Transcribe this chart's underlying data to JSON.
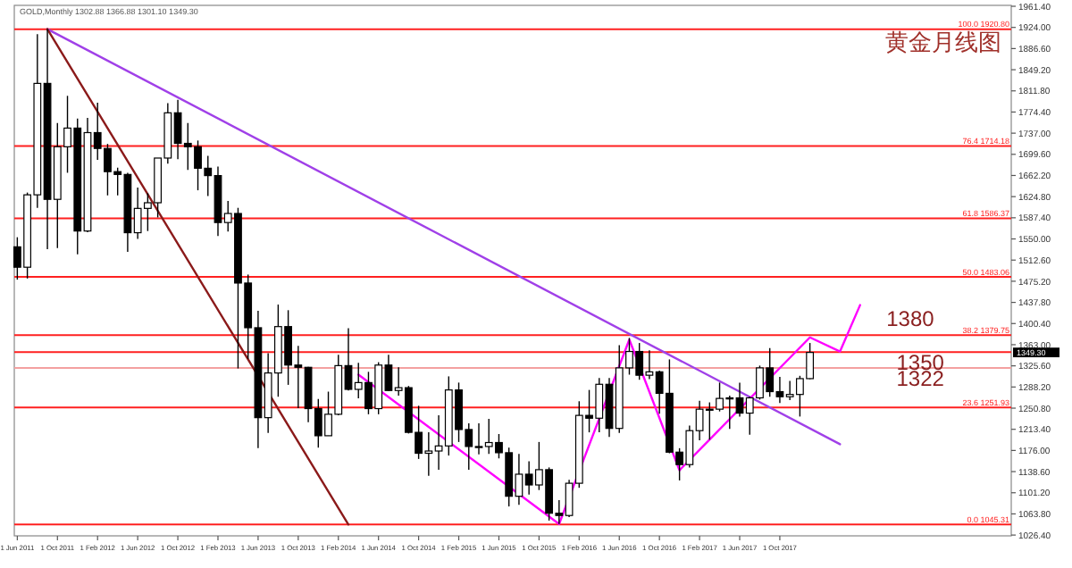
{
  "chart_data": {
    "type": "candlestick",
    "title": "黄金月线图",
    "subtitle": "GOLD,Monthly 1302.88 1366.88 1301.10 1349.30",
    "x": [
      "2011-06",
      "2011-07",
      "2011-08",
      "2011-09",
      "2011-10",
      "2011-11",
      "2011-12",
      "2012-01",
      "2012-02",
      "2012-03",
      "2012-04",
      "2012-05",
      "2012-06",
      "2012-07",
      "2012-08",
      "2012-09",
      "2012-10",
      "2012-11",
      "2012-12",
      "2013-01",
      "2013-02",
      "2013-03",
      "2013-04",
      "2013-05",
      "2013-06",
      "2013-07",
      "2013-08",
      "2013-09",
      "2013-10",
      "2013-11",
      "2013-12",
      "2014-01",
      "2014-02",
      "2014-03",
      "2014-04",
      "2014-05",
      "2014-06",
      "2014-07",
      "2014-08",
      "2014-09",
      "2014-10",
      "2014-11",
      "2014-12",
      "2015-01",
      "2015-02",
      "2015-03",
      "2015-04",
      "2015-05",
      "2015-06",
      "2015-07",
      "2015-08",
      "2015-09",
      "2015-10",
      "2015-11",
      "2015-12",
      "2016-01",
      "2016-02",
      "2016-03",
      "2016-04",
      "2016-05",
      "2016-06",
      "2016-07",
      "2016-08",
      "2016-09",
      "2016-10",
      "2016-11",
      "2016-12",
      "2017-01",
      "2017-02",
      "2017-03",
      "2017-04",
      "2017-05",
      "2017-06",
      "2017-07",
      "2017-08",
      "2017-09",
      "2017-10",
      "2017-11",
      "2017-12",
      "2018-01"
    ],
    "ohlc": [
      [
        1536,
        1553,
        1478,
        1500
      ],
      [
        1500,
        1632,
        1480,
        1628
      ],
      [
        1628,
        1912,
        1605,
        1825
      ],
      [
        1825,
        1921,
        1532,
        1620
      ],
      [
        1620,
        1755,
        1534,
        1713
      ],
      [
        1713,
        1803,
        1667,
        1746
      ],
      [
        1746,
        1763,
        1523,
        1564
      ],
      [
        1564,
        1764,
        1562,
        1738
      ],
      [
        1738,
        1791,
        1690,
        1710
      ],
      [
        1710,
        1718,
        1627,
        1669
      ],
      [
        1669,
        1676,
        1627,
        1664
      ],
      [
        1664,
        1667,
        1527,
        1561
      ],
      [
        1561,
        1641,
        1550,
        1604
      ],
      [
        1604,
        1631,
        1564,
        1614
      ],
      [
        1614,
        1693,
        1588,
        1693
      ],
      [
        1693,
        1790,
        1683,
        1773
      ],
      [
        1773,
        1796,
        1691,
        1719
      ],
      [
        1719,
        1755,
        1672,
        1713
      ],
      [
        1713,
        1724,
        1636,
        1675
      ],
      [
        1675,
        1697,
        1626,
        1662
      ],
      [
        1662,
        1678,
        1555,
        1579
      ],
      [
        1579,
        1617,
        1563,
        1595
      ],
      [
        1595,
        1605,
        1321,
        1472
      ],
      [
        1472,
        1487,
        1338,
        1393
      ],
      [
        1393,
        1423,
        1180,
        1234
      ],
      [
        1234,
        1348,
        1207,
        1313
      ],
      [
        1313,
        1434,
        1271,
        1395
      ],
      [
        1395,
        1424,
        1292,
        1327
      ],
      [
        1327,
        1361,
        1251,
        1323
      ],
      [
        1323,
        1324,
        1226,
        1250
      ],
      [
        1250,
        1267,
        1181,
        1202
      ],
      [
        1202,
        1280,
        1202,
        1240
      ],
      [
        1240,
        1345,
        1238,
        1326
      ],
      [
        1326,
        1392,
        1282,
        1284
      ],
      [
        1284,
        1331,
        1268,
        1296
      ],
      [
        1296,
        1315,
        1240,
        1250
      ],
      [
        1250,
        1332,
        1240,
        1327
      ],
      [
        1327,
        1345,
        1281,
        1282
      ],
      [
        1282,
        1323,
        1273,
        1287
      ],
      [
        1287,
        1290,
        1206,
        1208
      ],
      [
        1208,
        1255,
        1161,
        1171
      ],
      [
        1171,
        1208,
        1131,
        1175
      ],
      [
        1175,
        1238,
        1142,
        1184
      ],
      [
        1184,
        1307,
        1167,
        1283
      ],
      [
        1283,
        1296,
        1191,
        1213
      ],
      [
        1213,
        1224,
        1142,
        1183
      ],
      [
        1183,
        1224,
        1169,
        1183
      ],
      [
        1183,
        1232,
        1170,
        1190
      ],
      [
        1190,
        1205,
        1162,
        1172
      ],
      [
        1172,
        1181,
        1077,
        1095
      ],
      [
        1095,
        1170,
        1080,
        1134
      ],
      [
        1134,
        1157,
        1098,
        1115
      ],
      [
        1115,
        1191,
        1106,
        1142
      ],
      [
        1142,
        1146,
        1052,
        1065
      ],
      [
        1065,
        1088,
        1046,
        1061
      ],
      [
        1061,
        1124,
        1058,
        1118
      ],
      [
        1118,
        1263,
        1110,
        1238
      ],
      [
        1238,
        1283,
        1208,
        1233
      ],
      [
        1233,
        1304,
        1208,
        1293
      ],
      [
        1293,
        1304,
        1200,
        1215
      ],
      [
        1215,
        1362,
        1207,
        1322
      ],
      [
        1322,
        1375,
        1310,
        1351
      ],
      [
        1351,
        1366,
        1301,
        1309
      ],
      [
        1309,
        1353,
        1302,
        1315
      ],
      [
        1315,
        1317,
        1241,
        1277
      ],
      [
        1277,
        1337,
        1171,
        1173
      ],
      [
        1173,
        1180,
        1123,
        1151
      ],
      [
        1151,
        1220,
        1146,
        1211
      ],
      [
        1211,
        1264,
        1194,
        1249
      ],
      [
        1249,
        1261,
        1195,
        1249
      ],
      [
        1249,
        1296,
        1245,
        1268
      ],
      [
        1268,
        1273,
        1214,
        1269
      ],
      [
        1269,
        1296,
        1236,
        1242
      ],
      [
        1242,
        1271,
        1204,
        1269
      ],
      [
        1269,
        1326,
        1266,
        1322
      ],
      [
        1322,
        1357,
        1271,
        1280
      ],
      [
        1280,
        1306,
        1260,
        1271
      ],
      [
        1271,
        1299,
        1265,
        1275
      ],
      [
        1275,
        1308,
        1236,
        1303
      ],
      [
        1303,
        1366,
        1302,
        1349.3
      ]
    ],
    "series": [
      {
        "type": "line",
        "color": "#a040e8",
        "x": [
          "2011-09",
          "2018-04"
        ],
        "values": [
          1921,
          1187
        ]
      },
      {
        "type": "line",
        "color": "#8b1a1a",
        "x": [
          "2011-09",
          "2014-03"
        ],
        "values": [
          1921,
          1045
        ]
      },
      {
        "type": "line",
        "color": "#ff00ff",
        "x": [
          "2014-04",
          "2015-12",
          "2016-07",
          "2016-12",
          "2018-01",
          "2018-04",
          "2018-06"
        ],
        "values": [
          1310,
          1046,
          1372,
          1141,
          1376,
          1351,
          1433
        ]
      }
    ],
    "xlim": [
      "2011-05-22",
      "2019-09-03"
    ],
    "xticks": [
      {
        "value": "2011-06",
        "label": "1 Jun 2011"
      },
      {
        "value": "2011-10",
        "label": "1 Oct 2011"
      },
      {
        "value": "2012-02",
        "label": "1 Feb 2012"
      },
      {
        "value": "2012-06",
        "label": "1 Jun 2012"
      },
      {
        "value": "2012-10",
        "label": "1 Oct 2012"
      },
      {
        "value": "2013-02",
        "label": "1 Feb 2013"
      },
      {
        "value": "2013-06",
        "label": "1 Jun 2013"
      },
      {
        "value": "2013-10",
        "label": "1 Oct 2013"
      },
      {
        "value": "2014-02",
        "label": "1 Feb 2014"
      },
      {
        "value": "2014-06",
        "label": "1 Jun 2014"
      },
      {
        "value": "2014-10",
        "label": "1 Oct 2014"
      },
      {
        "value": "2015-02",
        "label": "1 Feb 2015"
      },
      {
        "value": "2015-06",
        "label": "1 Jun 2015"
      },
      {
        "value": "2015-10",
        "label": "1 Oct 2015"
      },
      {
        "value": "2016-02",
        "label": "1 Feb 2016"
      },
      {
        "value": "2016-06",
        "label": "1 Jun 2016"
      },
      {
        "value": "2016-10",
        "label": "1 Oct 2016"
      },
      {
        "value": "2017-02",
        "label": "1 Feb 2017"
      },
      {
        "value": "2017-06",
        "label": "1 Jun 2017"
      },
      {
        "value": "2017-10",
        "label": "1 Oct 2017"
      }
    ],
    "ylim": [
      1025,
      1963
    ],
    "yticks": [
      {
        "value": 1026.4,
        "label": "1026.40"
      },
      {
        "value": 1063.8,
        "label": "1063.80"
      },
      {
        "value": 1101.2,
        "label": "1101.20"
      },
      {
        "value": 1138.6,
        "label": "1138.60"
      },
      {
        "value": 1176,
        "label": "1176.00"
      },
      {
        "value": 1213.4,
        "label": "1213.40"
      },
      {
        "value": 1250.8,
        "label": "1250.80"
      },
      {
        "value": 1288.2,
        "label": "1288.20"
      },
      {
        "value": 1325.6,
        "label": "1325.60"
      },
      {
        "value": 1363,
        "label": "1363.00"
      },
      {
        "value": 1400.4,
        "label": "1400.40"
      },
      {
        "value": 1437.8,
        "label": "1437.80"
      },
      {
        "value": 1475.2,
        "label": "1475.20"
      },
      {
        "value": 1512.6,
        "label": "1512.60"
      },
      {
        "value": 1550,
        "label": "1550.00"
      },
      {
        "value": 1587.4,
        "label": "1587.40"
      },
      {
        "value": 1624.8,
        "label": "1624.80"
      },
      {
        "value": 1662.2,
        "label": "1662.20"
      },
      {
        "value": 1699.6,
        "label": "1699.60"
      },
      {
        "value": 1737,
        "label": "1737.00"
      },
      {
        "value": 1774.4,
        "label": "1774.40"
      },
      {
        "value": 1811.8,
        "label": "1811.80"
      },
      {
        "value": 1849.2,
        "label": "1849.20"
      },
      {
        "value": 1886.6,
        "label": "1886.60"
      },
      {
        "value": 1924,
        "label": "1924.00"
      },
      {
        "value": 1961.4,
        "label": "1961.40"
      }
    ],
    "ref_lines": [
      {
        "axis": "y",
        "value": 1920.8,
        "label": "100.0 1920.80",
        "color": "#ff2020"
      },
      {
        "axis": "y",
        "value": 1714.18,
        "label": "76.4 1714.18",
        "color": "#ff2020"
      },
      {
        "axis": "y",
        "value": 1586.37,
        "label": "61.8 1586.37",
        "color": "#ff2020"
      },
      {
        "axis": "y",
        "value": 1483.06,
        "label": "50.0 1483.06",
        "color": "#ff2020"
      },
      {
        "axis": "y",
        "value": 1379.75,
        "label": "38.2 1379.75",
        "color": "#ff2020"
      },
      {
        "axis": "y",
        "value": 1350,
        "color": "#ff2020"
      },
      {
        "axis": "y",
        "value": 1322,
        "color": "#f4a0a0"
      },
      {
        "axis": "y",
        "value": 1251.93,
        "label": "23.6 1251.93",
        "color": "#ff2020"
      },
      {
        "axis": "y",
        "value": 1045.31,
        "label": "0.0 1045.31",
        "color": "#ff2020"
      }
    ],
    "annotations": [
      {
        "text": "1380",
        "x": "2018-11",
        "y": 1380
      },
      {
        "text": "1350",
        "x": "2018-12",
        "y": 1350
      },
      {
        "text": "1322",
        "x": "2018-12",
        "y": 1322
      },
      "1349.30"
    ],
    "grid": false
  }
}
